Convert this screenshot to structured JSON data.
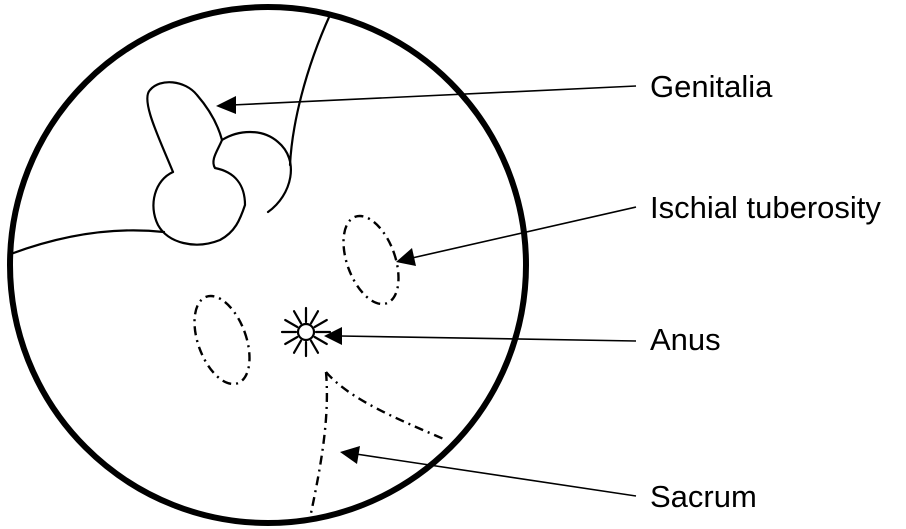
{
  "labels": {
    "genitalia": "Genitalia",
    "ischial_tuberosity": "Ischial tuberosity",
    "anus": "Anus",
    "sacrum": "Sacrum"
  },
  "colors": {
    "stroke": "#000000",
    "background": "#ffffff"
  }
}
